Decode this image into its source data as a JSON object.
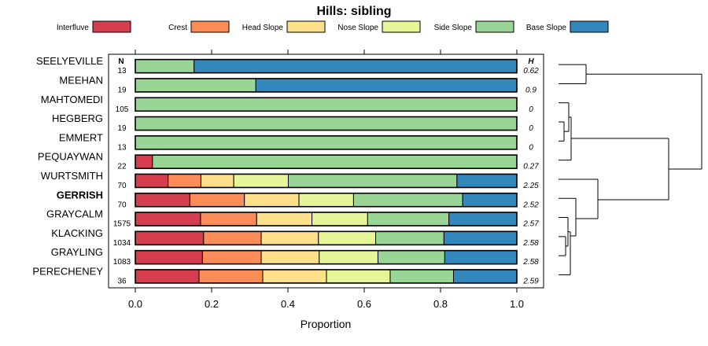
{
  "chart_data": {
    "type": "bar",
    "stacked": true,
    "orientation": "horizontal",
    "title": "Hills: sibling",
    "xlabel": "Proportion",
    "ylabel": "",
    "xlim": [
      0,
      1
    ],
    "x_ticks": [
      0.0,
      0.2,
      0.4,
      0.6,
      0.8,
      1.0
    ],
    "x_tick_labels": [
      "0.0",
      "0.2",
      "0.4",
      "0.6",
      "0.8",
      "1.0"
    ],
    "n_header": "N",
    "h_header": "H",
    "highlight": "GERRISH",
    "legend_position": "top",
    "categories": [
      "SEELYEVILLE",
      "MEEHAN",
      "MAHTOMEDI",
      "HEGBERG",
      "EMMERT",
      "PEQUAYWAN",
      "WURTSMITH",
      "GERRISH",
      "GRAYCALM",
      "KLACKING",
      "GRAYLING",
      "PERECHENEY"
    ],
    "n_values": [
      "13",
      "19",
      "105",
      "19",
      "13",
      "22",
      "70",
      "70",
      "1575",
      "1034",
      "1083",
      "36"
    ],
    "h_values": [
      "0.62",
      "0.9",
      "0",
      "0",
      "0",
      "0.27",
      "2.25",
      "2.52",
      "2.57",
      "2.58",
      "2.58",
      "2.59"
    ],
    "series": [
      {
        "name": "Interfluve",
        "color": "#d53e4f",
        "values": [
          0,
          0,
          0,
          0,
          0,
          0.045,
          0.086,
          0.143,
          0.171,
          0.179,
          0.176,
          0.167
        ]
      },
      {
        "name": "Crest",
        "color": "#fc8d59",
        "values": [
          0,
          0,
          0,
          0,
          0,
          0,
          0.086,
          0.143,
          0.147,
          0.151,
          0.154,
          0.167
        ]
      },
      {
        "name": "Head Slope",
        "color": "#fee08b",
        "values": [
          0,
          0,
          0,
          0,
          0,
          0,
          0.086,
          0.143,
          0.145,
          0.15,
          0.152,
          0.167
        ]
      },
      {
        "name": "Nose Slope",
        "color": "#e6f598",
        "values": [
          0,
          0,
          0,
          0,
          0,
          0,
          0.143,
          0.143,
          0.146,
          0.15,
          0.154,
          0.167
        ]
      },
      {
        "name": "Side Slope",
        "color": "#99d594",
        "values": [
          0.154,
          0.316,
          1.0,
          1.0,
          1.0,
          0.955,
          0.442,
          0.286,
          0.213,
          0.179,
          0.175,
          0.166
        ]
      },
      {
        "name": "Base Slope",
        "color": "#3288bd",
        "values": [
          0.846,
          0.684,
          0,
          0,
          0,
          0,
          0.157,
          0.142,
          0.178,
          0.191,
          0.189,
          0.166
        ]
      }
    ]
  }
}
